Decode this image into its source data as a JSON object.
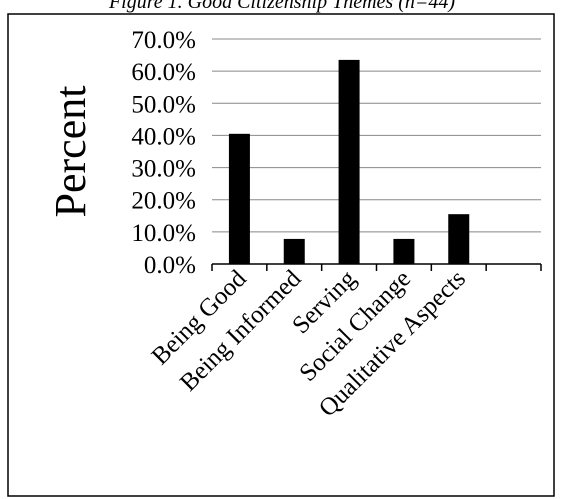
{
  "chart_data": {
    "type": "bar",
    "title": "Figure 1. Good Citizenship Themes (n=44)",
    "xlabel": "",
    "ylabel": "Percent",
    "categories": [
      "Being Good",
      "Being Informed",
      "Serving",
      "Social Change",
      "Qualitative Aspects"
    ],
    "values": [
      40.5,
      7.8,
      63.5,
      7.8,
      15.5
    ],
    "ylim": [
      0,
      70
    ],
    "y_ticks": [
      "0.0%",
      "10.0%",
      "20.0%",
      "30.0%",
      "40.0%",
      "50.0%",
      "60.0%",
      "70.0%"
    ],
    "grid": true,
    "legend": "none",
    "colors": {
      "bar": "#000000",
      "grid": "#888888",
      "axis": "#000000"
    }
  }
}
